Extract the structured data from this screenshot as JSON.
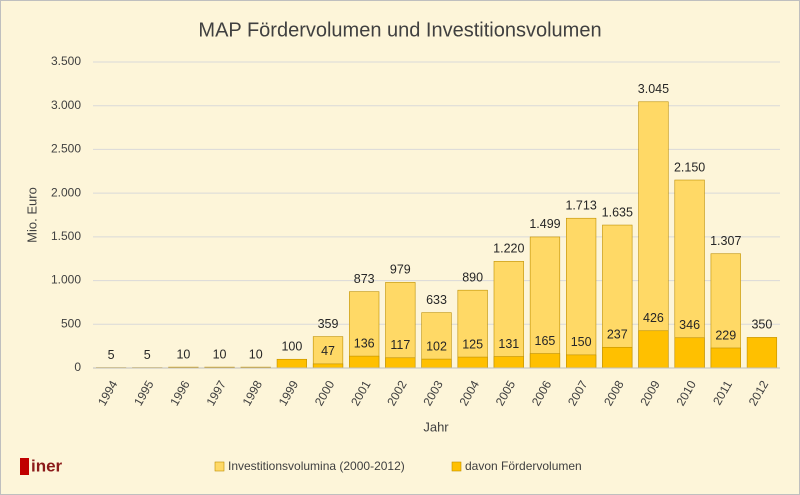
{
  "chart_data": {
    "type": "bar",
    "title": "MAP Fördervolumen und Investitionsvolumen",
    "x_label": "Jahr",
    "y_label": "Mio. Euro",
    "logo": "iner",
    "categories": [
      "1994",
      "1995",
      "1996",
      "1997",
      "1998",
      "1999",
      "2000",
      "2001",
      "2002",
      "2003",
      "2004",
      "2005",
      "2006",
      "2007",
      "2008",
      "2009",
      "2010",
      "2011",
      "2012"
    ],
    "series": [
      {
        "name": "Investitionsvolumina (2000-2012)",
        "color": "#FFD966",
        "values": [
          null,
          null,
          null,
          null,
          null,
          null,
          359,
          873,
          979,
          633,
          890,
          1220,
          1499,
          1713,
          1635,
          3045,
          2150,
          1307,
          null
        ],
        "value_labels": [
          null,
          null,
          null,
          null,
          null,
          null,
          "359",
          "873",
          "979",
          "633",
          "890",
          "1.220",
          "1.499",
          "1.713",
          "1.635",
          "3.045",
          "2.150",
          "1.307",
          null
        ]
      },
      {
        "name": "davon Fördervolumen",
        "color": "#FFC000",
        "values": [
          5,
          5,
          10,
          10,
          10,
          100,
          47,
          136,
          117,
          102,
          125,
          131,
          165,
          150,
          237,
          426,
          346,
          229,
          350
        ]
      }
    ],
    "ylim": [
      0,
      3500
    ],
    "yticks": [
      0,
      500,
      {
        "value": 1000,
        "label": "1.000"
      },
      {
        "value": 1500,
        "label": "1.500"
      },
      {
        "value": 2000,
        "label": "2.000"
      },
      {
        "value": 2500,
        "label": "2.500"
      },
      {
        "value": 3000,
        "label": "3.000"
      },
      {
        "value": 3500,
        "label": "3.500"
      }
    ],
    "grid": true,
    "legend": "bottom"
  }
}
